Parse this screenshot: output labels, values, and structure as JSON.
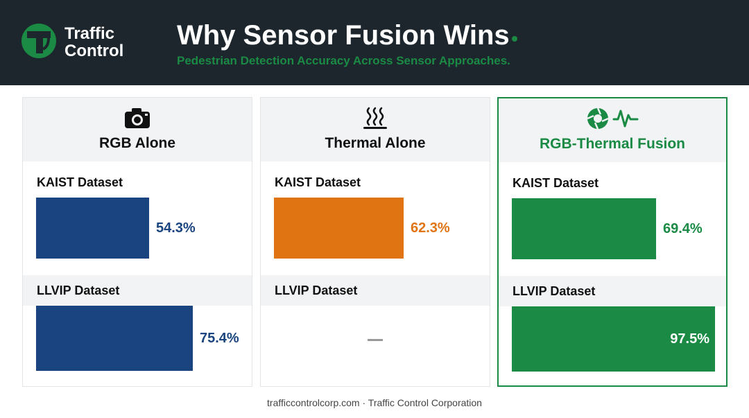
{
  "brand": {
    "line1": "Traffic",
    "line2": "Control",
    "color": "#1a8a44"
  },
  "header": {
    "title": "Why Sensor Fusion Wins",
    "subtitle": "Pedestrian Detection Accuracy Across Sensor Approaches.",
    "accent": "#1a8a44"
  },
  "chart_data": {
    "type": "bar",
    "categories": [
      "KAIST Dataset",
      "LLVIP Dataset"
    ],
    "unit": "%",
    "ylim": [
      0,
      100
    ],
    "series": [
      {
        "name": "RGB Alone",
        "icon": "camera-icon",
        "color": "#1a4480",
        "values": [
          54.3,
          75.4
        ],
        "labels": [
          "54.3%",
          "75.4%"
        ]
      },
      {
        "name": "Thermal Alone",
        "icon": "heat-waves-icon",
        "color": "#e07312",
        "values": [
          62.3,
          null
        ],
        "labels": [
          "62.3%",
          "—"
        ]
      },
      {
        "name": "RGB-Thermal Fusion",
        "icon": "fusion-icon",
        "color": "#1a8a44",
        "values": [
          69.4,
          97.5
        ],
        "labels": [
          "69.4%",
          "97.5%"
        ],
        "highlighted": true
      }
    ]
  },
  "footer": {
    "text": "trafficcontrolcorp.com · Traffic Control Corporation"
  }
}
